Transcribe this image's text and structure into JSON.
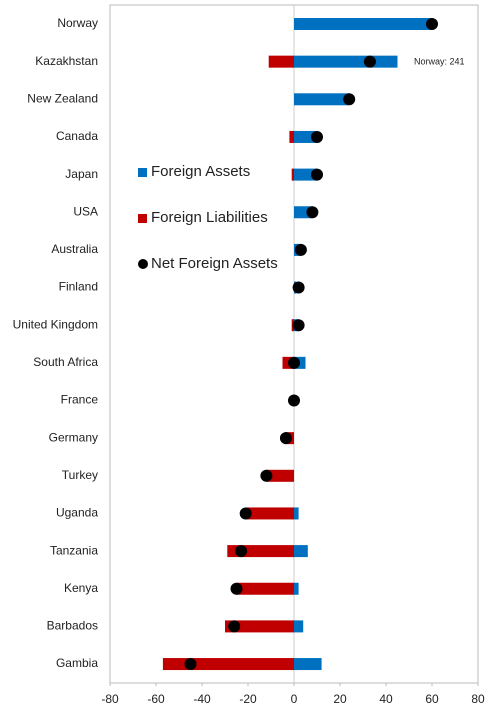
{
  "chart_data": {
    "type": "bar",
    "orientation": "horizontal",
    "categories": [
      "Norway",
      "Kazakhstan",
      "New Zealand",
      "Canada",
      "Japan",
      "USA",
      "Australia",
      "Finland",
      "United Kingdom",
      "South Africa",
      "France",
      "Germany",
      "Turkey",
      "Uganda",
      "Tanzania",
      "Kenya",
      "Barbados",
      "Gambia"
    ],
    "series": [
      {
        "name": "Foreign Assets",
        "color": "#0070c0",
        "mark": "bar",
        "values": [
          60,
          45,
          24,
          10,
          10,
          8,
          3,
          1,
          2,
          5,
          0,
          0,
          0,
          2,
          6,
          2,
          4,
          12
        ]
      },
      {
        "name": "Foreign Liabilities",
        "color": "#c00000",
        "mark": "bar",
        "values": [
          0,
          -11,
          0,
          -2,
          -1,
          0,
          0,
          0,
          -1,
          -5,
          0,
          -4,
          -12,
          -21,
          -29,
          -25,
          -30,
          -57
        ]
      },
      {
        "name": "Net Foreign Assets",
        "color": "#000000",
        "mark": "dot",
        "values": [
          60,
          33,
          24,
          10,
          10,
          8,
          3,
          2,
          2,
          0,
          0,
          -3.5,
          -12,
          -21,
          -23,
          -25,
          -26,
          -45
        ]
      }
    ],
    "annotations": [
      "Norway: 241"
    ],
    "xlim": [
      -80,
      80
    ],
    "xticks": [
      -80,
      -60,
      -40,
      -20,
      0,
      20,
      40,
      60,
      80
    ]
  }
}
